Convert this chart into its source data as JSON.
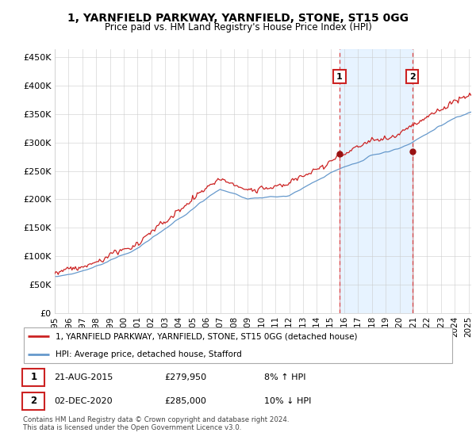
{
  "title": "1, YARNFIELD PARKWAY, YARNFIELD, STONE, ST15 0GG",
  "subtitle": "Price paid vs. HM Land Registry's House Price Index (HPI)",
  "yticks": [
    0,
    50000,
    100000,
    150000,
    200000,
    250000,
    300000,
    350000,
    400000,
    450000
  ],
  "ytick_labels": [
    "£0",
    "£50K",
    "£100K",
    "£150K",
    "£200K",
    "£250K",
    "£300K",
    "£350K",
    "£400K",
    "£450K"
  ],
  "xlim_start": 1995.0,
  "xlim_end": 2025.2,
  "ylim_min": 0,
  "ylim_max": 465000,
  "transaction1_x": 2015.64,
  "transaction1_y": 279950,
  "transaction1_label": "1",
  "transaction1_date": "21-AUG-2015",
  "transaction1_price": "£279,950",
  "transaction1_hpi": "8% ↑ HPI",
  "transaction2_x": 2020.92,
  "transaction2_y": 285000,
  "transaction2_label": "2",
  "transaction2_date": "02-DEC-2020",
  "transaction2_price": "£285,000",
  "transaction2_hpi": "10% ↓ HPI",
  "property_label": "1, YARNFIELD PARKWAY, YARNFIELD, STONE, ST15 0GG (detached house)",
  "hpi_label": "HPI: Average price, detached house, Stafford",
  "footer": "Contains HM Land Registry data © Crown copyright and database right 2024.\nThis data is licensed under the Open Government Licence v3.0.",
  "line_color_property": "#cc2222",
  "line_color_hpi": "#6699cc",
  "fill_color": "#ddeeff",
  "vline_color": "#dd4444",
  "marker_color": "#991111"
}
